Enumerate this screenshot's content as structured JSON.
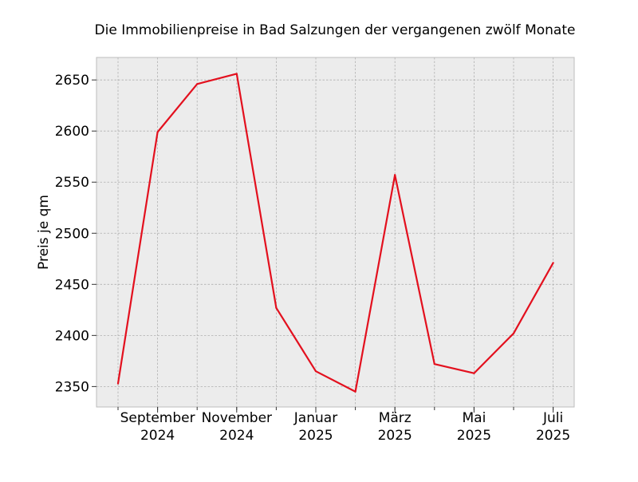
{
  "chart_data": {
    "type": "line",
    "title": "Die Immobilienpreise in Bad Salzungen der vergangenen zwölf Monate",
    "xlabel": "",
    "ylabel": "Preis je qm",
    "x": [
      "2024-08",
      "2024-09",
      "2024-10",
      "2024-11",
      "2024-12",
      "2025-01",
      "2025-02",
      "2025-03",
      "2025-04",
      "2025-05",
      "2025-06",
      "2025-07"
    ],
    "series": [
      {
        "values": [
          2353,
          2599,
          2646,
          2656,
          2427,
          2365,
          2345,
          2557,
          2372,
          2363,
          2402,
          2471
        ]
      }
    ],
    "ylim": [
      2330,
      2672
    ],
    "yticks": [
      2350,
      2400,
      2450,
      2500,
      2550,
      2600,
      2650
    ],
    "xtick_labels": [
      {
        "x": "2024-09",
        "line1": "September",
        "line2": "2024"
      },
      {
        "x": "2024-11",
        "line1": "November",
        "line2": "2024"
      },
      {
        "x": "2025-01",
        "line1": "Januar",
        "line2": "2025"
      },
      {
        "x": "2025-03",
        "line1": "März",
        "line2": "2025"
      },
      {
        "x": "2025-05",
        "line1": "Mai",
        "line2": "2025"
      },
      {
        "x": "2025-07",
        "line1": "Juli",
        "line2": "2025"
      }
    ],
    "grid": true,
    "colors": {
      "line": "#e3101e",
      "plot_background": "#ececec",
      "grid": "#b0b0b0",
      "frame": "#bcbcbc"
    }
  }
}
